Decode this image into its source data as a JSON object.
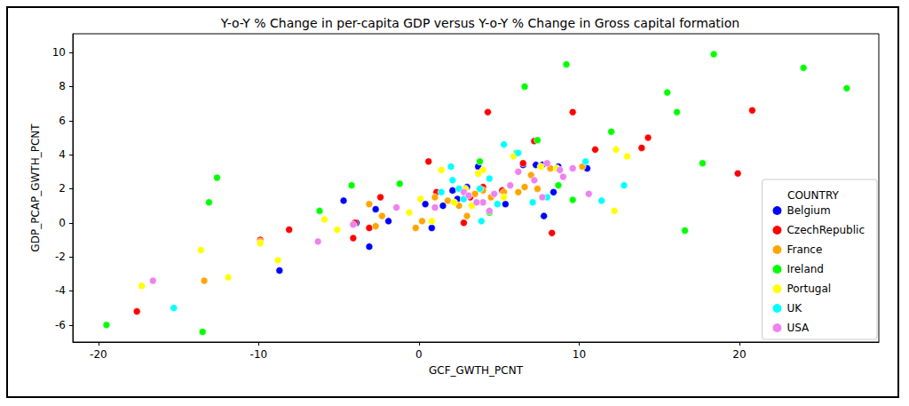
{
  "chart_data": {
    "type": "scatter",
    "title": "Y-o-Y % Change in per-capita GDP versus Y-o-Y % Change in Gross capital formation",
    "x_label": "GCF_GWTH_PCNT",
    "y_label": "GDP_PCAP_GWTH_PCNT",
    "legend_title": "COUNTRY",
    "legend": "lower right",
    "grid": false,
    "marker": "circle",
    "xlim": [
      -21.6,
      28.7
    ],
    "ylim": [
      -7.0,
      11.1
    ],
    "xticks": [
      -20,
      -10,
      0,
      10,
      20
    ],
    "yticks": [
      -6,
      -4,
      -2,
      0,
      2,
      4,
      6,
      8,
      10
    ],
    "series": [
      {
        "name": "Belgium",
        "color": "#0000ff",
        "values": [
          [
            -8.7,
            -2.8
          ],
          [
            -4.7,
            1.3
          ],
          [
            -3.1,
            -1.4
          ],
          [
            -2.7,
            0.8
          ],
          [
            -1.9,
            0.1
          ],
          [
            -3.9,
            0.0
          ],
          [
            0.4,
            1.1
          ],
          [
            0.8,
            -0.3
          ],
          [
            1.5,
            1.0
          ],
          [
            2.1,
            1.9
          ],
          [
            3.7,
            3.3
          ],
          [
            3.7,
            2.9
          ],
          [
            5.4,
            1.1
          ],
          [
            6.5,
            3.4
          ],
          [
            7.3,
            3.4
          ],
          [
            7.7,
            3.4
          ],
          [
            7.8,
            0.4
          ],
          [
            8.4,
            1.8
          ],
          [
            8.7,
            3.3
          ],
          [
            10.5,
            3.2
          ],
          [
            3.0,
            2.1
          ],
          [
            2.4,
            1.4
          ]
        ]
      },
      {
        "name": "CzechRepublic",
        "color": "#ff0000",
        "values": [
          [
            -17.6,
            -5.2
          ],
          [
            -8.1,
            -0.4
          ],
          [
            -4.1,
            -0.9
          ],
          [
            -2.4,
            1.5
          ],
          [
            -3.1,
            -0.3
          ],
          [
            0.6,
            3.6
          ],
          [
            1.1,
            1.8
          ],
          [
            2.8,
            0.0
          ],
          [
            4.3,
            6.5
          ],
          [
            7.2,
            4.8
          ],
          [
            6.5,
            3.5
          ],
          [
            8.3,
            -0.6
          ],
          [
            9.6,
            6.5
          ],
          [
            11.0,
            4.3
          ],
          [
            13.9,
            4.4
          ],
          [
            14.3,
            5.0
          ],
          [
            19.9,
            2.9
          ],
          [
            20.8,
            6.6
          ],
          [
            4.0,
            2.1
          ],
          [
            5.2,
            1.9
          ],
          [
            3.2,
            1.5
          ],
          [
            -9.9,
            -1.0
          ],
          [
            -4.0,
            0.0
          ]
        ]
      },
      {
        "name": "France",
        "color": "#ffa500",
        "values": [
          [
            -13.4,
            -3.4
          ],
          [
            -9.9,
            -1.1
          ],
          [
            -3.1,
            1.1
          ],
          [
            -2.3,
            0.4
          ],
          [
            -0.2,
            -0.3
          ],
          [
            0.2,
            0.1
          ],
          [
            1.0,
            1.5
          ],
          [
            2.5,
            1.0
          ],
          [
            3.0,
            0.4
          ],
          [
            3.5,
            1.7
          ],
          [
            4.0,
            1.9
          ],
          [
            4.5,
            1.5
          ],
          [
            5.3,
            1.8
          ],
          [
            6.2,
            1.8
          ],
          [
            6.6,
            2.1
          ],
          [
            7.0,
            2.8
          ],
          [
            7.4,
            2.0
          ],
          [
            8.2,
            3.2
          ],
          [
            10.2,
            3.3
          ],
          [
            -2.7,
            -0.2
          ],
          [
            1.8,
            1.3
          ]
        ]
      },
      {
        "name": "Ireland",
        "color": "#00ff00",
        "values": [
          [
            -19.5,
            -6.0
          ],
          [
            -13.5,
            -6.4
          ],
          [
            -12.6,
            2.65
          ],
          [
            -13.1,
            1.2
          ],
          [
            -6.2,
            0.7
          ],
          [
            -4.2,
            2.2
          ],
          [
            -1.2,
            2.3
          ],
          [
            3.8,
            3.6
          ],
          [
            6.6,
            8.0
          ],
          [
            9.2,
            9.3
          ],
          [
            7.4,
            4.85
          ],
          [
            6.1,
            4.1
          ],
          [
            4.4,
            0.6
          ],
          [
            9.6,
            1.35
          ],
          [
            8.7,
            2.2
          ],
          [
            12.0,
            5.35
          ],
          [
            15.5,
            7.65
          ],
          [
            16.1,
            6.5
          ],
          [
            17.7,
            3.5
          ],
          [
            16.6,
            -0.45
          ],
          [
            18.4,
            9.9
          ],
          [
            24.0,
            9.1
          ],
          [
            26.7,
            7.9
          ]
        ]
      },
      {
        "name": "Portugal",
        "color": "#ffff00",
        "values": [
          [
            -17.3,
            -3.7
          ],
          [
            -13.6,
            -1.6
          ],
          [
            -11.9,
            -3.2
          ],
          [
            -9.9,
            -1.2
          ],
          [
            -8.8,
            -2.2
          ],
          [
            -5.1,
            -0.4
          ],
          [
            -5.9,
            0.2
          ],
          [
            -0.6,
            0.6
          ],
          [
            0.1,
            1.4
          ],
          [
            0.8,
            0.1
          ],
          [
            1.4,
            3.1
          ],
          [
            2.2,
            1.2
          ],
          [
            3.3,
            1.0
          ],
          [
            4.0,
            3.1
          ],
          [
            5.3,
            1.5
          ],
          [
            5.9,
            3.9
          ],
          [
            7.6,
            3.3
          ],
          [
            8.6,
            3.2
          ],
          [
            12.2,
            0.7
          ],
          [
            12.3,
            4.3
          ],
          [
            13.0,
            3.9
          ],
          [
            3.7,
            2.9
          ],
          [
            2.9,
            2.0
          ]
        ]
      },
      {
        "name": "UK",
        "color": "#00ffff",
        "values": [
          [
            -15.3,
            -5.0
          ],
          [
            2.0,
            3.3
          ],
          [
            2.1,
            2.5
          ],
          [
            2.5,
            2.0
          ],
          [
            1.4,
            1.8
          ],
          [
            3.8,
            2.0
          ],
          [
            3.9,
            0.1
          ],
          [
            4.4,
            2.6
          ],
          [
            5.3,
            4.6
          ],
          [
            6.2,
            4.1
          ],
          [
            7.1,
            1.2
          ],
          [
            8.0,
            1.5
          ],
          [
            10.4,
            3.6
          ],
          [
            11.4,
            1.3
          ],
          [
            12.8,
            2.2
          ],
          [
            4.9,
            1.1
          ],
          [
            2.8,
            1.4
          ]
        ]
      },
      {
        "name": "USA",
        "color": "#ee82ee",
        "values": [
          [
            -16.6,
            -3.4
          ],
          [
            -6.3,
            -1.1
          ],
          [
            -4.1,
            -0.1
          ],
          [
            -1.4,
            0.9
          ],
          [
            1.0,
            0.9
          ],
          [
            2.8,
            1.8
          ],
          [
            3.1,
            1.6
          ],
          [
            4.0,
            1.2
          ],
          [
            4.7,
            1.7
          ],
          [
            5.7,
            2.2
          ],
          [
            6.2,
            3.0
          ],
          [
            7.2,
            2.5
          ],
          [
            7.7,
            1.5
          ],
          [
            8.0,
            3.5
          ],
          [
            8.8,
            3.1
          ],
          [
            9.0,
            2.7
          ],
          [
            9.6,
            3.2
          ],
          [
            10.6,
            1.7
          ],
          [
            4.4,
            0.7
          ],
          [
            3.6,
            1.2
          ]
        ]
      }
    ]
  }
}
